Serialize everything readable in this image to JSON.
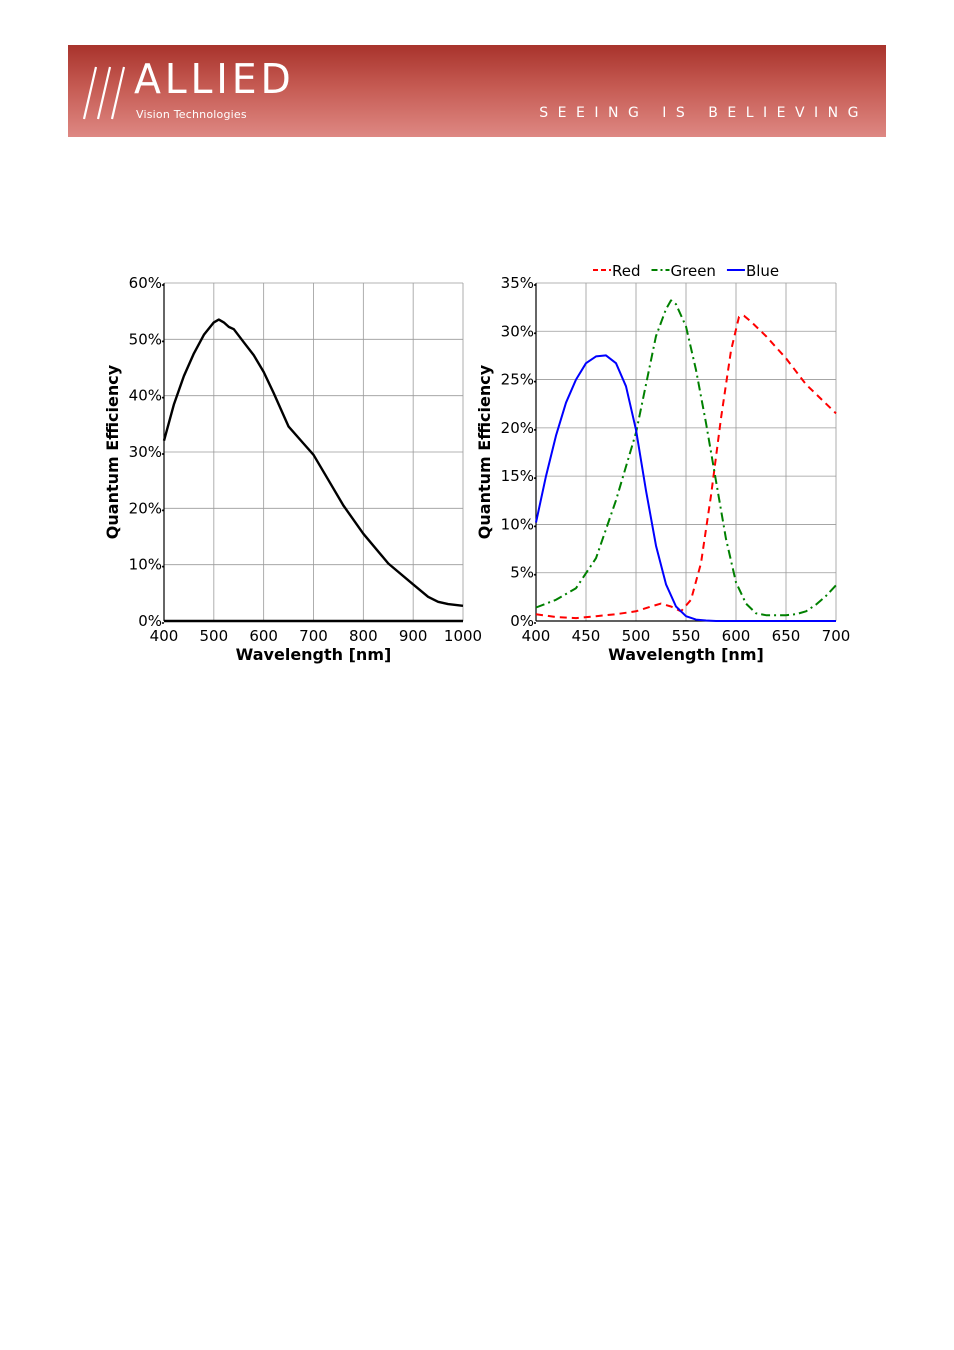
{
  "header": {
    "brand": "ALLIED",
    "sub": "Vision Technologies",
    "tagline": "SEEING IS BELIEVING",
    "colors": {
      "banner_top": "#a8332c",
      "banner_bottom": "#de8883",
      "text": "#ffffff"
    }
  },
  "chart_data": [
    {
      "type": "line",
      "xlabel": "Wavelength [nm]",
      "ylabel": "Quantum Efficiency",
      "xlim": [
        400,
        1000
      ],
      "ylim": [
        0,
        60
      ],
      "xticks": [
        "400",
        "500",
        "600",
        "700",
        "800",
        "900",
        "1000"
      ],
      "yticks": [
        "0%",
        "10%",
        "20%",
        "30%",
        "40%",
        "50%",
        "60%"
      ],
      "grid": true,
      "legend": "none",
      "series": [
        {
          "color": "#000000",
          "dash": "",
          "x": [
            400,
            420,
            440,
            460,
            480,
            500,
            510,
            520,
            530,
            540,
            560,
            580,
            600,
            620,
            650,
            680,
            700,
            730,
            760,
            800,
            850,
            900,
            930,
            950,
            970,
            1000
          ],
          "y": [
            32,
            38.5,
            43.5,
            47.5,
            50.8,
            53,
            53.5,
            53,
            52.2,
            51.8,
            49.5,
            47.2,
            44.2,
            40.5,
            34.5,
            31.5,
            29.5,
            25,
            20.5,
            15.5,
            10.2,
            6.5,
            4.3,
            3.4,
            3.0,
            2.7
          ]
        }
      ]
    },
    {
      "type": "line",
      "xlabel": "Wavelength [nm]",
      "ylabel": "Quantum Efficiency",
      "xlim": [
        400,
        700
      ],
      "ylim": [
        0,
        35
      ],
      "xticks": [
        "400",
        "450",
        "500",
        "550",
        "600",
        "650",
        "700"
      ],
      "yticks": [
        "0%",
        "5%",
        "10%",
        "15%",
        "20%",
        "25%",
        "30%",
        "35%"
      ],
      "grid": true,
      "legend": "top",
      "series": [
        {
          "name": "Red",
          "color": "#ff0000",
          "dash": "7 5",
          "x": [
            400,
            420,
            440,
            460,
            480,
            500,
            515,
            525,
            535,
            545,
            555,
            565,
            575,
            585,
            595,
            603,
            608,
            615,
            630,
            650,
            670,
            690,
            700
          ],
          "y": [
            0.7,
            0.4,
            0.3,
            0.5,
            0.7,
            1.0,
            1.5,
            1.8,
            1.5,
            1.0,
            2.2,
            6.0,
            13,
            21,
            28,
            31.5,
            31.6,
            31,
            29.5,
            27.2,
            24.5,
            22.5,
            21.5
          ]
        },
        {
          "name": "Green",
          "color": "#008000",
          "dash": "9 4 2 4",
          "x": [
            400,
            420,
            440,
            460,
            480,
            500,
            510,
            520,
            530,
            535,
            540,
            550,
            560,
            570,
            580,
            590,
            600,
            610,
            620,
            630,
            640,
            650,
            660,
            670,
            680,
            690,
            700
          ],
          "y": [
            1.4,
            2.2,
            3.4,
            6.5,
            12.5,
            19.5,
            24.5,
            29.5,
            32.3,
            33.2,
            32.8,
            30.5,
            26,
            20.5,
            14.5,
            8.5,
            4.0,
            1.8,
            0.8,
            0.6,
            0.6,
            0.6,
            0.7,
            1.0,
            1.7,
            2.6,
            3.7
          ]
        },
        {
          "name": "Blue",
          "color": "#0000ff",
          "dash": "",
          "x": [
            400,
            410,
            420,
            430,
            440,
            450,
            460,
            470,
            480,
            490,
            500,
            510,
            520,
            530,
            540,
            550,
            560,
            570,
            580,
            600,
            700
          ],
          "y": [
            10.2,
            15.0,
            19.2,
            22.6,
            25.0,
            26.7,
            27.4,
            27.5,
            26.7,
            24.3,
            19.8,
            13.5,
            7.8,
            3.8,
            1.5,
            0.5,
            0.15,
            0.05,
            0.0,
            0.0,
            0.0
          ]
        }
      ]
    }
  ]
}
